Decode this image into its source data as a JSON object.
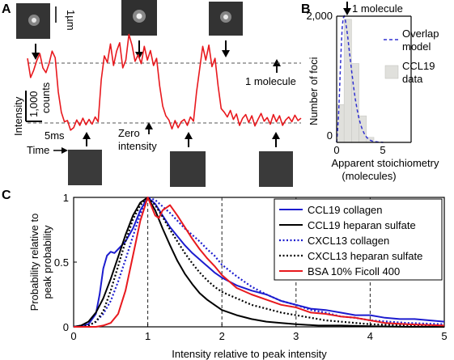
{
  "panels": {
    "a": {
      "letter": "A",
      "scalebar_label": "1µm",
      "intensity_label": "Intensity",
      "counts_value": "1,000",
      "counts_unit": "counts",
      "time_scale_label": "5ms",
      "time_label": "Time",
      "one_molecule_label": "1 molecule",
      "zero_intensity_line1": "Zero",
      "zero_intensity_line2": "intensity"
    },
    "b": {
      "letter": "B",
      "ylabel": "Number of foci",
      "xlabel_line1": "Apparent stoichiometry",
      "xlabel_line2": "(molecules)",
      "ytick_top": "2,000",
      "ytick_zero": "0",
      "xticks": [
        "0",
        "5"
      ],
      "annotation": "1 molecule",
      "legend_overlap_line1": "Overlap",
      "legend_overlap_line2": "model",
      "legend_data_line1": "CCL19",
      "legend_data_line2": "data"
    },
    "c": {
      "letter": "C"
    }
  },
  "colors": {
    "trace_red": "#e8191e",
    "model_blue": "#3030d0",
    "bar_fill": "#e0e0dc",
    "ccl19_collagen": "#1c1ccf",
    "ccl19_heparan": "#000000",
    "cxcl13_collagen": "#1c1ccf",
    "cxcl13_heparan": "#000000",
    "bsa_ficoll": "#e8191e"
  },
  "chart_data": [
    {
      "type": "line",
      "panel": "A",
      "x": [
        0,
        1,
        2,
        3,
        4,
        5,
        6,
        7,
        8,
        9,
        10,
        11,
        12,
        13,
        14,
        15,
        16,
        17,
        18,
        19,
        20,
        21,
        22,
        23,
        24,
        25,
        26,
        27,
        28,
        29,
        30,
        31,
        32,
        33,
        34,
        35,
        36,
        37,
        38,
        39,
        40,
        41,
        42,
        43,
        44,
        45,
        46,
        47,
        48,
        49,
        50,
        51,
        52,
        53,
        54,
        55,
        56,
        57,
        58,
        59,
        60,
        61,
        62,
        63,
        64,
        65,
        66,
        67,
        68,
        69,
        70,
        71,
        72,
        73,
        74,
        75,
        76,
        77,
        78,
        79,
        80,
        81,
        82,
        83,
        84,
        85,
        86,
        87,
        88,
        89
      ],
      "y": [
        1.08,
        0.76,
        0.88,
        1.04,
        1.16,
        0.92,
        0.84,
        0.99,
        1.2,
        1.09,
        0.52,
        0.18,
        0.02,
        0.04,
        -0.12,
        -0.08,
        0.05,
        -0.04,
        0.08,
        -0.03,
        0.06,
        -0.02,
        0.1,
        0.02,
        0.72,
        1.12,
        1.01,
        1.32,
        0.96,
        1.2,
        1.34,
        0.92,
        1.05,
        1.48,
        1.3,
        1.03,
        1.14,
        0.99,
        1.28,
        1.05,
        1.21,
        0.96,
        1.08,
        0.62,
        0.28,
        0.12,
        0.05,
        -0.1,
        0.04,
        -0.08,
        0.02,
        0.06,
        -0.04,
        0.1,
        0.03,
        0.52,
        0.9,
        1.28,
        1.05,
        1.3,
        0.94,
        1.08,
        0.62,
        0.24,
        0.18,
        0.1,
        0.21,
        0.06,
        0.15,
        -0.04,
        0.08,
        0.14,
        0.01,
        0.12,
        -0.05,
        0.06,
        0.16,
        0.03,
        0.09,
        -0.02,
        0.14,
        0.02,
        0.12,
        -0.04,
        0.05,
        0.1,
        0.02,
        0.13,
        0.04,
        0.08
      ],
      "reference_levels": [
        1,
        0
      ]
    },
    {
      "type": "bar",
      "panel": "B",
      "xlim": [
        0,
        8
      ],
      "ylim": [
        0,
        2000
      ],
      "bar_width": 0.8,
      "bars": [
        {
          "x": 0.4,
          "value": 600
        },
        {
          "x": 1.2,
          "value": 1950
        },
        {
          "x": 2.0,
          "value": 1250
        },
        {
          "x": 2.8,
          "value": 420
        },
        {
          "x": 3.6,
          "value": 80
        }
      ],
      "series": [
        {
          "name": "Overlap model",
          "x": [
            0,
            0.1,
            0.2,
            0.3,
            0.4,
            0.5,
            0.6,
            0.7,
            0.8,
            0.9,
            1.0,
            1.1,
            1.2,
            1.3,
            1.4,
            1.5,
            1.6,
            1.7,
            1.8,
            1.9,
            2.0,
            2.2,
            2.4,
            2.6,
            2.8,
            3.0,
            3.2,
            3.4,
            3.6,
            3.8,
            4.0,
            4.5,
            5.0
          ],
          "y": [
            0,
            180,
            420,
            760,
            1180,
            1560,
            1830,
            1970,
            2000,
            1960,
            1880,
            1780,
            1660,
            1530,
            1400,
            1270,
            1140,
            1020,
            900,
            790,
            690,
            520,
            380,
            270,
            190,
            130,
            85,
            55,
            35,
            22,
            14,
            5,
            0
          ]
        },
        {
          "name": "CCL19 data"
        }
      ],
      "annotation_x": 1
    },
    {
      "type": "line",
      "panel": "C",
      "title": "",
      "xlabel": "Intensity relative to peak intensity",
      "ylabel": "Probability relative to peak probability",
      "xlim": [
        0,
        5
      ],
      "ylim": [
        0,
        1
      ],
      "xticks": [
        0,
        1,
        2,
        3,
        4,
        5
      ],
      "yticks": [
        0,
        0.5,
        1
      ],
      "reference_lines_x": [
        1,
        2,
        3,
        4
      ],
      "legend_position": "top-right",
      "series": [
        {
          "name": "CCL19 collagen",
          "style": "solid",
          "x": [
            0,
            0.2,
            0.3,
            0.35,
            0.4,
            0.45,
            0.5,
            0.55,
            0.6,
            0.7,
            0.8,
            0.9,
            1.0,
            1.1,
            1.2,
            1.3,
            1.4,
            1.5,
            1.6,
            1.7,
            1.8,
            1.9,
            2.0,
            2.2,
            2.4,
            2.6,
            2.8,
            3.0,
            3.2,
            3.4,
            3.6,
            3.8,
            4.0,
            4.2,
            4.4,
            4.6,
            4.8,
            5.0
          ],
          "y": [
            0,
            0.02,
            0.1,
            0.25,
            0.45,
            0.55,
            0.58,
            0.57,
            0.6,
            0.66,
            0.76,
            0.9,
            1.0,
            0.95,
            0.86,
            0.77,
            0.7,
            0.63,
            0.57,
            0.52,
            0.47,
            0.42,
            0.38,
            0.32,
            0.28,
            0.25,
            0.2,
            0.17,
            0.14,
            0.13,
            0.11,
            0.09,
            0.09,
            0.07,
            0.06,
            0.06,
            0.05,
            0.04
          ]
        },
        {
          "name": "CCL19 heparan sulfate",
          "style": "solid",
          "x": [
            0,
            0.1,
            0.2,
            0.3,
            0.4,
            0.5,
            0.6,
            0.7,
            0.8,
            0.9,
            1.0,
            1.1,
            1.2,
            1.3,
            1.4,
            1.5,
            1.6,
            1.7,
            1.8,
            1.9,
            2.0,
            2.2,
            2.4,
            2.6,
            2.8,
            3.0,
            3.3,
            3.6,
            4.0,
            4.5,
            5.0
          ],
          "y": [
            0,
            0.01,
            0.04,
            0.11,
            0.22,
            0.37,
            0.54,
            0.71,
            0.86,
            0.96,
            1.0,
            0.9,
            0.76,
            0.63,
            0.51,
            0.41,
            0.33,
            0.26,
            0.21,
            0.17,
            0.13,
            0.09,
            0.06,
            0.04,
            0.03,
            0.02,
            0.01,
            0.01,
            0.005,
            0,
            0
          ]
        },
        {
          "name": "CXCL13 collagen",
          "style": "dotted",
          "x": [
            0,
            0.2,
            0.3,
            0.4,
            0.5,
            0.6,
            0.7,
            0.8,
            0.9,
            1.0,
            1.1,
            1.2,
            1.3,
            1.4,
            1.5,
            1.6,
            1.7,
            1.8,
            1.9,
            2.0,
            2.2,
            2.4,
            2.6,
            2.8,
            3.0,
            3.2,
            3.4,
            3.6,
            3.8,
            4.0,
            4.5,
            5.0
          ],
          "y": [
            0,
            0.01,
            0.04,
            0.1,
            0.2,
            0.35,
            0.52,
            0.7,
            0.87,
            1.0,
            0.98,
            0.93,
            0.88,
            0.82,
            0.76,
            0.71,
            0.66,
            0.6,
            0.55,
            0.48,
            0.39,
            0.31,
            0.25,
            0.2,
            0.17,
            0.13,
            0.11,
            0.08,
            0.07,
            0.05,
            0.03,
            0.02
          ]
        },
        {
          "name": "CXCL13 heparan sulfate",
          "style": "dotted",
          "x": [
            0,
            0.2,
            0.3,
            0.4,
            0.5,
            0.6,
            0.7,
            0.8,
            0.9,
            1.0,
            1.1,
            1.2,
            1.3,
            1.4,
            1.5,
            1.6,
            1.7,
            1.8,
            1.9,
            2.0,
            2.2,
            2.4,
            2.6,
            2.8,
            3.0,
            3.2,
            3.4,
            3.6,
            3.8,
            4.0,
            4.5,
            5.0
          ],
          "y": [
            0,
            0.01,
            0.04,
            0.12,
            0.28,
            0.47,
            0.66,
            0.83,
            0.94,
            1.0,
            0.94,
            0.85,
            0.75,
            0.66,
            0.57,
            0.49,
            0.42,
            0.36,
            0.31,
            0.27,
            0.22,
            0.17,
            0.14,
            0.11,
            0.09,
            0.07,
            0.05,
            0.04,
            0.03,
            0.02,
            0.01,
            0
          ]
        },
        {
          "name": "BSA 10% Ficoll 400",
          "style": "solid",
          "x": [
            0,
            0.3,
            0.4,
            0.5,
            0.6,
            0.7,
            0.8,
            0.9,
            1.0,
            1.1,
            1.15,
            1.2,
            1.3,
            1.4,
            1.5,
            1.6,
            1.7,
            1.8,
            1.9,
            2.0,
            2.1,
            2.2,
            2.4,
            2.6,
            2.8,
            3.0,
            3.2,
            3.4,
            3.6,
            3.8,
            4.0,
            4.2,
            4.5,
            5.0
          ],
          "y": [
            0,
            0,
            0.01,
            0.03,
            0.1,
            0.28,
            0.55,
            0.82,
            1.0,
            0.86,
            0.84,
            0.9,
            0.94,
            0.86,
            0.77,
            0.68,
            0.6,
            0.53,
            0.47,
            0.4,
            0.35,
            0.3,
            0.25,
            0.21,
            0.17,
            0.15,
            0.11,
            0.1,
            0.08,
            0.07,
            0.05,
            0.03,
            0.02,
            0.01
          ]
        }
      ]
    }
  ]
}
